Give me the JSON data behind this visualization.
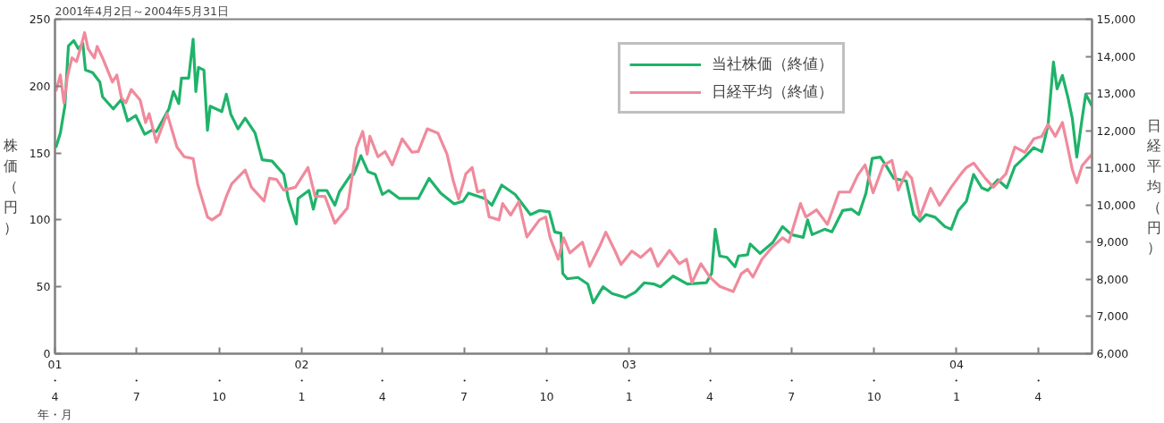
{
  "chart_data": {
    "type": "line",
    "title": "2001年4月2日～2004年5月31日",
    "xlabel": "年・月",
    "ylabel": "株価（円）",
    "y2label": "日経平均（円）",
    "xlim": [
      "2001-04-01",
      "2004-05-31"
    ],
    "xticks": [
      {
        "value": "2001-04-01",
        "label": "01\n・\n4"
      },
      {
        "value": "2001-07-01",
        "label": "・\n7"
      },
      {
        "value": "2001-10-01",
        "label": "・\n10"
      },
      {
        "value": "2002-01-01",
        "label": "02\n・\n1"
      },
      {
        "value": "2002-04-01",
        "label": "・\n4"
      },
      {
        "value": "2002-07-01",
        "label": "・\n7"
      },
      {
        "value": "2002-10-01",
        "label": "・\n10"
      },
      {
        "value": "2003-01-01",
        "label": "03\n・\n1"
      },
      {
        "value": "2003-04-01",
        "label": "・\n4"
      },
      {
        "value": "2003-07-01",
        "label": "・\n7"
      },
      {
        "value": "2003-10-01",
        "label": "・\n10"
      },
      {
        "value": "2004-01-01",
        "label": "04\n・\n1"
      },
      {
        "value": "2004-04-01",
        "label": "・\n4"
      }
    ],
    "ylim": [
      0,
      250
    ],
    "yticks": [
      0,
      50,
      100,
      150,
      200,
      250
    ],
    "y2lim": [
      6000,
      15000
    ],
    "y2ticks": [
      {
        "value": 6000,
        "label": "6,000"
      },
      {
        "value": 7000,
        "label": "7,000"
      },
      {
        "value": 8000,
        "label": "8,000"
      },
      {
        "value": 9000,
        "label": "9,000"
      },
      {
        "value": 10000,
        "label": "10,000"
      },
      {
        "value": 11000,
        "label": "11,000"
      },
      {
        "value": 12000,
        "label": "12,000"
      },
      {
        "value": 13000,
        "label": "13,000"
      },
      {
        "value": 14000,
        "label": "14,000"
      },
      {
        "value": 15000,
        "label": "15,000"
      }
    ],
    "grid": false,
    "legend": "top right",
    "marker": "none",
    "line_style": "solid",
    "series": [
      {
        "name": "当社株価（終値）",
        "color": "#1fb36a",
        "x": [
          "2001-04-02",
          "2001-04-07",
          "2001-04-12",
          "2001-04-16",
          "2001-04-22",
          "2001-04-27",
          "2001-05-02",
          "2001-05-05",
          "2001-05-13",
          "2001-05-21",
          "2001-05-24",
          "2001-06-05",
          "2001-06-14",
          "2001-06-21",
          "2001-06-30",
          "2001-07-10",
          "2001-07-18",
          "2001-07-23",
          "2001-08-06",
          "2001-08-11",
          "2001-08-17",
          "2001-08-20",
          "2001-08-28",
          "2001-09-02",
          "2001-09-05",
          "2001-09-08",
          "2001-09-14",
          "2001-09-18",
          "2001-09-21",
          "2001-10-04",
          "2001-10-09",
          "2001-10-14",
          "2001-10-22",
          "2001-10-30",
          "2001-11-10",
          "2001-11-18",
          "2001-11-29",
          "2001-12-12",
          "2001-12-17",
          "2001-12-26",
          "2001-12-28",
          "2002-01-09",
          "2002-01-14",
          "2002-01-19",
          "2002-01-29",
          "2002-02-07",
          "2002-02-12",
          "2002-02-25",
          "2002-02-28",
          "2002-03-08",
          "2002-03-16",
          "2002-03-24",
          "2002-04-01",
          "2002-04-08",
          "2002-04-20",
          "2002-04-28",
          "2002-05-11",
          "2002-05-23",
          "2002-06-05",
          "2002-06-20",
          "2002-06-30",
          "2002-07-06",
          "2002-07-24",
          "2002-08-01",
          "2002-08-12",
          "2002-08-27",
          "2002-09-13",
          "2002-09-23",
          "2002-10-04",
          "2002-10-10",
          "2002-10-17",
          "2002-10-19",
          "2002-10-24",
          "2002-11-05",
          "2002-11-16",
          "2002-11-22",
          "2002-12-03",
          "2002-12-13",
          "2002-12-28",
          "2003-01-08",
          "2003-01-18",
          "2003-01-29",
          "2003-02-05",
          "2003-02-19",
          "2003-03-07",
          "2003-03-28",
          "2003-04-03",
          "2003-04-07",
          "2003-04-12",
          "2003-04-20",
          "2003-04-29",
          "2003-05-03",
          "2003-05-13",
          "2003-05-16",
          "2003-05-27",
          "2003-06-10",
          "2003-06-21",
          "2003-07-01",
          "2003-07-14",
          "2003-07-19",
          "2003-07-24",
          "2003-08-07",
          "2003-08-15",
          "2003-08-27",
          "2003-09-06",
          "2003-09-14",
          "2003-09-22",
          "2003-09-29",
          "2003-10-08",
          "2003-10-15",
          "2003-10-23",
          "2003-11-06",
          "2003-11-14",
          "2003-11-21",
          "2003-11-28",
          "2003-12-08",
          "2003-12-19",
          "2003-12-26",
          "2004-01-03",
          "2004-01-12",
          "2004-01-20",
          "2004-01-29",
          "2004-02-05",
          "2004-02-16",
          "2004-02-26",
          "2004-03-06",
          "2004-03-17",
          "2004-03-27",
          "2004-04-05",
          "2004-04-12",
          "2004-04-18",
          "2004-04-22",
          "2004-04-28",
          "2004-05-04",
          "2004-05-09",
          "2004-05-14",
          "2004-05-20",
          "2004-05-24",
          "2004-05-31"
        ],
        "values": [
          154,
          165,
          185,
          230,
          234,
          228,
          232,
          212,
          210,
          203,
          192,
          183,
          190,
          174,
          178,
          164,
          167,
          166,
          183,
          196,
          187,
          206,
          206,
          235,
          196,
          214,
          212,
          167,
          185,
          181,
          194,
          179,
          168,
          176,
          165,
          145,
          144,
          134,
          116,
          97,
          116,
          122,
          108,
          122,
          122,
          111,
          121,
          134,
          134,
          148,
          136,
          134,
          119,
          122,
          116,
          116,
          116,
          131,
          120,
          112,
          114,
          120,
          116,
          111,
          126,
          119,
          104,
          107,
          106,
          91,
          90,
          60,
          56,
          57,
          52,
          38,
          50,
          45,
          42,
          46,
          53,
          52,
          50,
          58,
          52,
          53,
          60,
          93,
          73,
          72,
          65,
          73,
          74,
          82,
          75,
          83,
          95,
          89,
          87,
          100,
          89,
          93,
          91,
          107,
          108,
          104,
          120,
          146,
          147,
          140,
          131,
          129,
          104,
          99,
          104,
          102,
          95,
          93,
          107,
          114,
          134,
          124,
          122,
          130,
          124,
          140,
          147,
          154,
          151,
          171,
          218,
          198,
          208,
          192,
          176,
          147,
          176,
          194,
          185
        ]
      },
      {
        "name": "日経平均（終値）",
        "color": "#f08a9c",
        "axis": "y2",
        "x": [
          "2001-04-02",
          "2001-04-07",
          "2001-04-11",
          "2001-04-15",
          "2001-04-20",
          "2001-04-25",
          "2001-04-30",
          "2001-05-04",
          "2001-05-08",
          "2001-05-15",
          "2001-05-18",
          "2001-05-24",
          "2001-06-04",
          "2001-06-09",
          "2001-06-14",
          "2001-06-19",
          "2001-06-25",
          "2001-07-05",
          "2001-07-11",
          "2001-07-15",
          "2001-07-23",
          "2001-08-04",
          "2001-08-15",
          "2001-08-23",
          "2001-09-02",
          "2001-09-07",
          "2001-09-18",
          "2001-09-23",
          "2001-10-02",
          "2001-10-09",
          "2001-10-15",
          "2001-10-30",
          "2001-11-06",
          "2001-11-20",
          "2001-11-26",
          "2001-12-04",
          "2001-12-12",
          "2001-12-25",
          "2002-01-08",
          "2002-01-16",
          "2002-01-27",
          "2002-02-07",
          "2002-02-21",
          "2002-03-03",
          "2002-03-10",
          "2002-03-15",
          "2002-03-18",
          "2002-03-27",
          "2002-04-04",
          "2002-04-12",
          "2002-04-23",
          "2002-05-04",
          "2002-05-11",
          "2002-05-21",
          "2002-06-02",
          "2002-06-12",
          "2002-06-19",
          "2002-06-25",
          "2002-07-03",
          "2002-07-10",
          "2002-07-16",
          "2002-07-23",
          "2002-07-29",
          "2002-08-09",
          "2002-08-13",
          "2002-08-22",
          "2002-08-31",
          "2002-09-09",
          "2002-09-23",
          "2002-09-30",
          "2002-10-05",
          "2002-10-14",
          "2002-10-20",
          "2002-10-27",
          "2002-11-10",
          "2002-11-18",
          "2002-11-29",
          "2002-12-06",
          "2002-12-16",
          "2002-12-23",
          "2003-01-04",
          "2003-01-14",
          "2003-01-25",
          "2003-02-02",
          "2003-02-15",
          "2003-02-26",
          "2003-03-06",
          "2003-03-12",
          "2003-03-22",
          "2003-04-01",
          "2003-04-12",
          "2003-04-27",
          "2003-05-06",
          "2003-05-13",
          "2003-05-19",
          "2003-05-29",
          "2003-06-10",
          "2003-06-21",
          "2003-06-28",
          "2003-07-11",
          "2003-07-17",
          "2003-07-29",
          "2003-08-10",
          "2003-08-23",
          "2003-09-04",
          "2003-09-13",
          "2003-09-21",
          "2003-09-30",
          "2003-10-11",
          "2003-10-21",
          "2003-10-28",
          "2003-11-06",
          "2003-11-12",
          "2003-11-21",
          "2003-12-03",
          "2003-12-13",
          "2003-12-26",
          "2004-01-06",
          "2004-01-12",
          "2004-01-20",
          "2004-02-02",
          "2004-02-11",
          "2004-02-25",
          "2004-03-06",
          "2004-03-17",
          "2004-03-27",
          "2004-04-05",
          "2004-04-12",
          "2004-04-20",
          "2004-04-28",
          "2004-05-04",
          "2004-05-09",
          "2004-05-14",
          "2004-05-20",
          "2004-05-31"
        ],
        "values": [
          13060,
          13500,
          12750,
          13480,
          13960,
          13860,
          14270,
          14640,
          14200,
          13960,
          14270,
          13960,
          13310,
          13500,
          12890,
          12750,
          13110,
          12820,
          12220,
          12460,
          11690,
          12460,
          11560,
          11300,
          11250,
          10570,
          9680,
          9600,
          9750,
          10230,
          10570,
          10940,
          10480,
          10110,
          10720,
          10690,
          10400,
          10480,
          11010,
          10230,
          10230,
          9510,
          9920,
          11540,
          11980,
          11370,
          11850,
          11300,
          11440,
          11080,
          11780,
          11420,
          11440,
          12050,
          11930,
          11370,
          10650,
          10160,
          10840,
          11010,
          10350,
          10400,
          9680,
          9600,
          10040,
          9730,
          10090,
          9140,
          9600,
          9680,
          9120,
          8540,
          9120,
          8710,
          9000,
          8350,
          8880,
          9270,
          8780,
          8400,
          8760,
          8590,
          8830,
          8350,
          8780,
          8420,
          8540,
          7910,
          8420,
          8060,
          7810,
          7670,
          8150,
          8270,
          8060,
          8540,
          8880,
          9120,
          9000,
          10040,
          9680,
          9870,
          9480,
          10350,
          10350,
          10810,
          11080,
          10330,
          11060,
          11200,
          10400,
          10890,
          10720,
          9680,
          10450,
          9990,
          10480,
          10840,
          11010,
          11130,
          10720,
          10480,
          10840,
          11560,
          11420,
          11780,
          11850,
          12170,
          11850,
          12220,
          11540,
          10960,
          10600,
          11060,
          11370
        ]
      }
    ]
  }
}
